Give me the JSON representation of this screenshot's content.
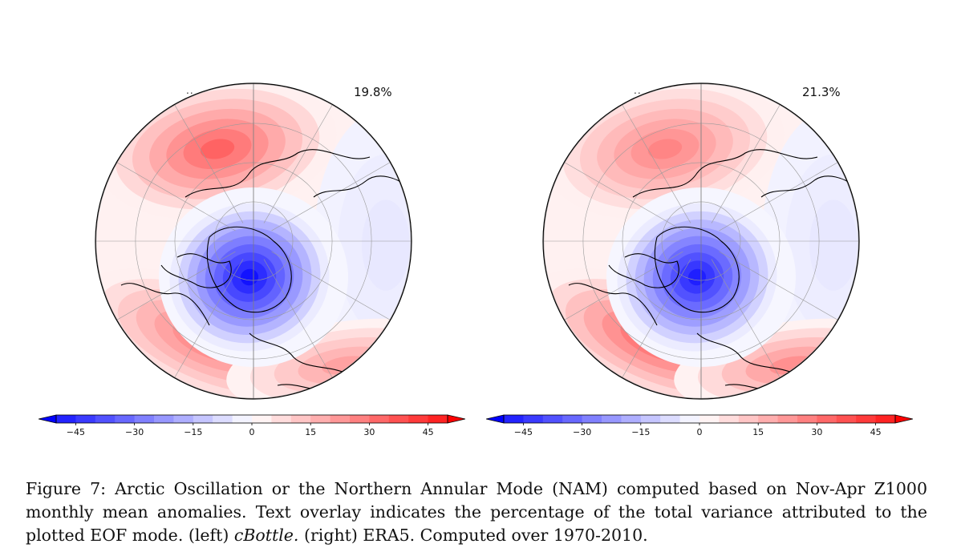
{
  "figure": {
    "caption_prefix": "Figure 7:",
    "caption_body_1": " Arctic Oscillation or the Northern Annular Mode (NAM) computed based on Nov-Apr Z1000 monthly mean anomalies.  Text overlay indicates the percentage of the total variance attributed to the plotted EOF mode. (left) ",
    "caption_italic_1": "cBottle.",
    "caption_body_2": " (right) ERA5. Computed over 1970-2010."
  },
  "panels": [
    {
      "id": "left",
      "corner_text": "..",
      "variance_label": "19.8%"
    },
    {
      "id": "right",
      "corner_text": "..",
      "variance_label": "21.3%"
    }
  ],
  "colorbar": {
    "ticks": [
      "−45",
      "−30",
      "−15",
      "0",
      "15",
      "30",
      "45"
    ],
    "tick_values": [
      -45,
      -30,
      -15,
      0,
      15,
      30,
      45
    ],
    "min": -55,
    "max": 55,
    "step": 5,
    "colormap": "bwr",
    "colors": {
      "negative": "#0000ff",
      "zero": "#ffffff",
      "positive": "#ff0000"
    }
  }
}
